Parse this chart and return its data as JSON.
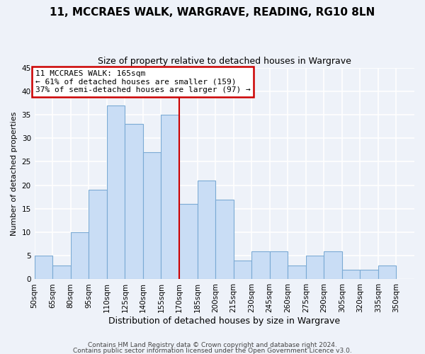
{
  "title": "11, MCCRAES WALK, WARGRAVE, READING, RG10 8LN",
  "subtitle": "Size of property relative to detached houses in Wargrave",
  "xlabel": "Distribution of detached houses by size in Wargrave",
  "ylabel": "Number of detached properties",
  "bar_labels": [
    "50sqm",
    "65sqm",
    "80sqm",
    "95sqm",
    "110sqm",
    "125sqm",
    "140sqm",
    "155sqm",
    "170sqm",
    "185sqm",
    "200sqm",
    "215sqm",
    "230sqm",
    "245sqm",
    "260sqm",
    "275sqm",
    "290sqm",
    "305sqm",
    "320sqm",
    "335sqm",
    "350sqm"
  ],
  "bar_values": [
    5,
    3,
    10,
    19,
    37,
    33,
    27,
    35,
    16,
    21,
    17,
    4,
    6,
    6,
    3,
    5,
    6,
    2,
    2,
    3,
    0
  ],
  "bar_color": "#c9ddf5",
  "bar_edge_color": "#7baad4",
  "annotation_text": "11 MCCRAES WALK: 165sqm\n← 61% of detached houses are smaller (159)\n37% of semi-detached houses are larger (97) →",
  "annotation_box_color": "#ffffff",
  "annotation_box_edge_color": "#cc0000",
  "vline_color": "#cc0000",
  "ylim": [
    0,
    45
  ],
  "yticks": [
    0,
    5,
    10,
    15,
    20,
    25,
    30,
    35,
    40,
    45
  ],
  "footer1": "Contains HM Land Registry data © Crown copyright and database right 2024.",
  "footer2": "Contains public sector information licensed under the Open Government Licence v3.0.",
  "background_color": "#eef2f9",
  "grid_color": "#ffffff",
  "title_fontsize": 11,
  "subtitle_fontsize": 9,
  "annotation_fontsize": 8,
  "xlabel_fontsize": 9,
  "ylabel_fontsize": 8,
  "tick_fontsize": 7.5,
  "footer_fontsize": 6.5
}
